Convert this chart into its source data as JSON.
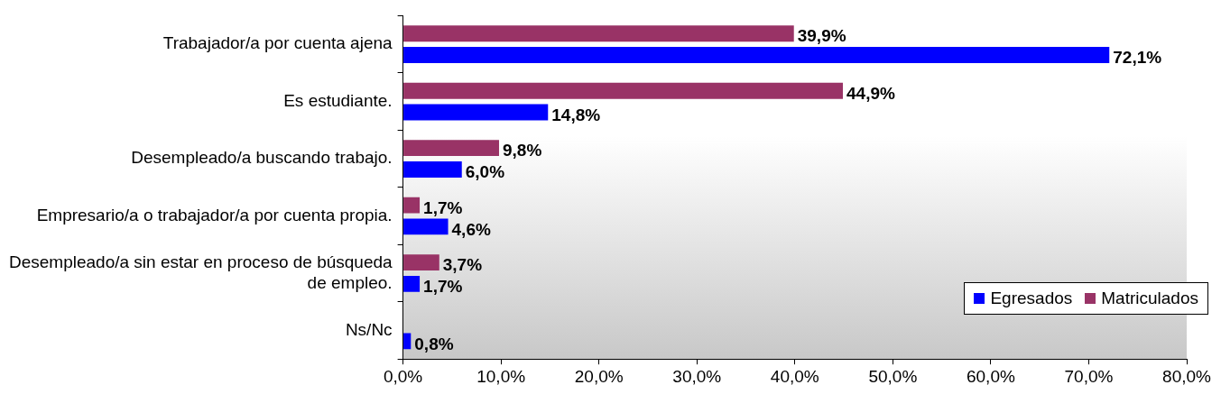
{
  "chart_data": {
    "type": "bar",
    "orientation": "horizontal",
    "categories": [
      "Trabajador/a por cuenta ajena",
      "Es estudiante.",
      "Desempleado/a buscando trabajo.",
      "Empresario/a o trabajador/a por cuenta propia.",
      "Desempleado/a sin estar en proceso de búsqueda de empleo.",
      "Ns/Nc"
    ],
    "series": [
      {
        "name": "Matriculados",
        "color": "#993366",
        "values": [
          39.9,
          44.9,
          9.8,
          1.7,
          3.7,
          null
        ],
        "value_labels": [
          "39,9%",
          "44,9%",
          "9,8%",
          "1,7%",
          "3,7%",
          null
        ]
      },
      {
        "name": "Egresados",
        "color": "#0000ff",
        "values": [
          72.1,
          14.8,
          6.0,
          4.6,
          1.7,
          0.8
        ],
        "value_labels": [
          "72,1%",
          "14,8%",
          "6,0%",
          "4,6%",
          "1,7%",
          "0,8%"
        ]
      }
    ],
    "xlim": [
      0,
      80
    ],
    "xticks": [
      {
        "value": 0,
        "label": "0,0%"
      },
      {
        "value": 10,
        "label": "10,0%"
      },
      {
        "value": 20,
        "label": "20,0%"
      },
      {
        "value": 30,
        "label": "30,0%"
      },
      {
        "value": 40,
        "label": "40,0%"
      },
      {
        "value": 50,
        "label": "50,0%"
      },
      {
        "value": 60,
        "label": "60,0%"
      },
      {
        "value": 70,
        "label": "70,0%"
      },
      {
        "value": 80,
        "label": "80,0%"
      }
    ],
    "grid": false,
    "legend": "bottom right"
  }
}
